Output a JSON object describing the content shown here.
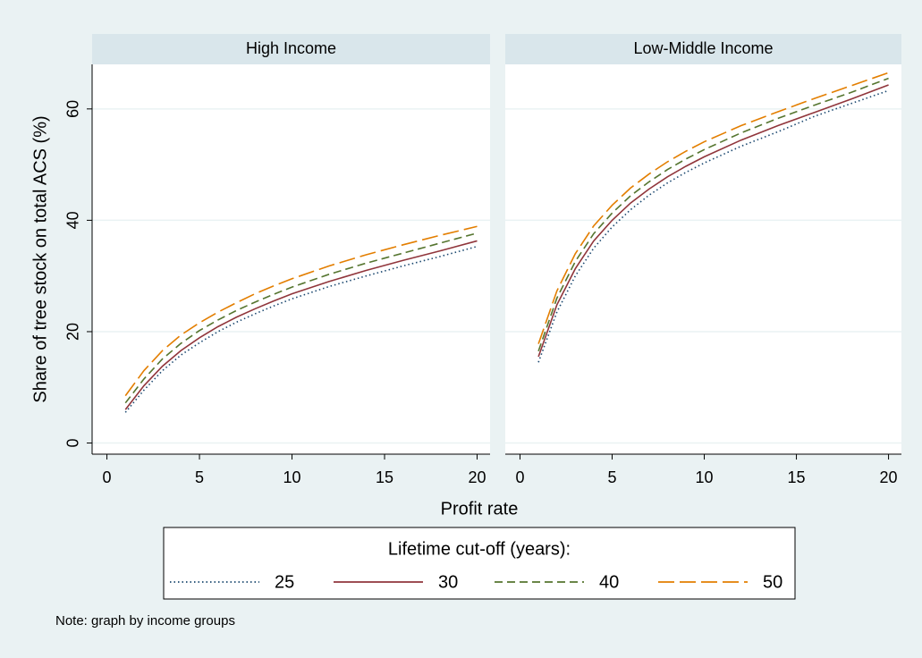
{
  "chart_data": [
    {
      "type": "line",
      "title": "High Income",
      "x": [
        1,
        2,
        3,
        4,
        5,
        6,
        7,
        8,
        9,
        10,
        12,
        14,
        16,
        18,
        20
      ],
      "series": [
        {
          "name": "25",
          "color": "#1a476f",
          "dash": "dot",
          "values": [
            5.5,
            9.5,
            13,
            15.8,
            18,
            20,
            21.7,
            23.2,
            24.6,
            25.9,
            28.1,
            30,
            31.8,
            33.5,
            35.3
          ]
        },
        {
          "name": "30",
          "color": "#90353b",
          "dash": "solid",
          "values": [
            6,
            10.3,
            13.8,
            16.6,
            18.9,
            20.9,
            22.6,
            24.1,
            25.5,
            26.8,
            29,
            31,
            32.8,
            34.5,
            36.3
          ]
        },
        {
          "name": "40",
          "color": "#55752f",
          "dash": "dash",
          "values": [
            7.2,
            11.5,
            15.1,
            17.9,
            20.2,
            22.1,
            23.8,
            25.3,
            26.7,
            28,
            30.3,
            32.3,
            34.1,
            35.9,
            37.7
          ]
        },
        {
          "name": "50",
          "color": "#e37e00",
          "dash": "longdash",
          "values": [
            8.5,
            13,
            16.6,
            19.4,
            21.6,
            23.5,
            25.2,
            26.8,
            28.2,
            29.5,
            31.8,
            33.8,
            35.6,
            37.3,
            38.9
          ]
        }
      ],
      "xlim": [
        -0.8,
        20.7
      ],
      "xticks": [
        0,
        5,
        10,
        15,
        20
      ],
      "ylim": [
        -2,
        68
      ],
      "yticks": [
        0,
        20,
        40,
        60
      ],
      "grid": true
    },
    {
      "type": "line",
      "title": "Low-Middle Income",
      "x": [
        1,
        2,
        3,
        4,
        5,
        6,
        7,
        8,
        9,
        10,
        12,
        14,
        16,
        18,
        20
      ],
      "series": [
        {
          "name": "25",
          "color": "#1a476f",
          "dash": "dot",
          "values": [
            14.5,
            23.5,
            30,
            35,
            38.8,
            41.9,
            44.5,
            46.7,
            48.6,
            50.3,
            53.3,
            55.9,
            58.7,
            61,
            63.3
          ]
        },
        {
          "name": "30",
          "color": "#90353b",
          "dash": "solid",
          "values": [
            15.5,
            24.8,
            31.3,
            36.3,
            40,
            43.1,
            45.6,
            47.8,
            49.7,
            51.4,
            54.4,
            57,
            59.4,
            61.8,
            64.3
          ]
        },
        {
          "name": "40",
          "color": "#55752f",
          "dash": "dash",
          "values": [
            16.5,
            26,
            32.6,
            37.6,
            41.3,
            44.4,
            46.9,
            49.1,
            51,
            52.7,
            55.7,
            58.3,
            60.7,
            63,
            65.5
          ]
        },
        {
          "name": "50",
          "color": "#e37e00",
          "dash": "longdash",
          "values": [
            17.8,
            27.3,
            34,
            39,
            42.7,
            45.8,
            48.3,
            50.5,
            52.4,
            54.1,
            57,
            59.5,
            61.9,
            64.2,
            66.5
          ]
        }
      ],
      "xlim": [
        -0.8,
        20.7
      ],
      "xticks": [
        0,
        5,
        10,
        15,
        20
      ],
      "ylim": [
        -2,
        68
      ],
      "yticks": [
        0,
        20,
        40,
        60
      ],
      "grid": true
    }
  ],
  "figure": {
    "y_label": "Share of tree stock on total ACS (%)",
    "x_label": "Profit rate",
    "legend_title": "Lifetime cut-off (years):",
    "note": "Note: graph by income groups"
  }
}
